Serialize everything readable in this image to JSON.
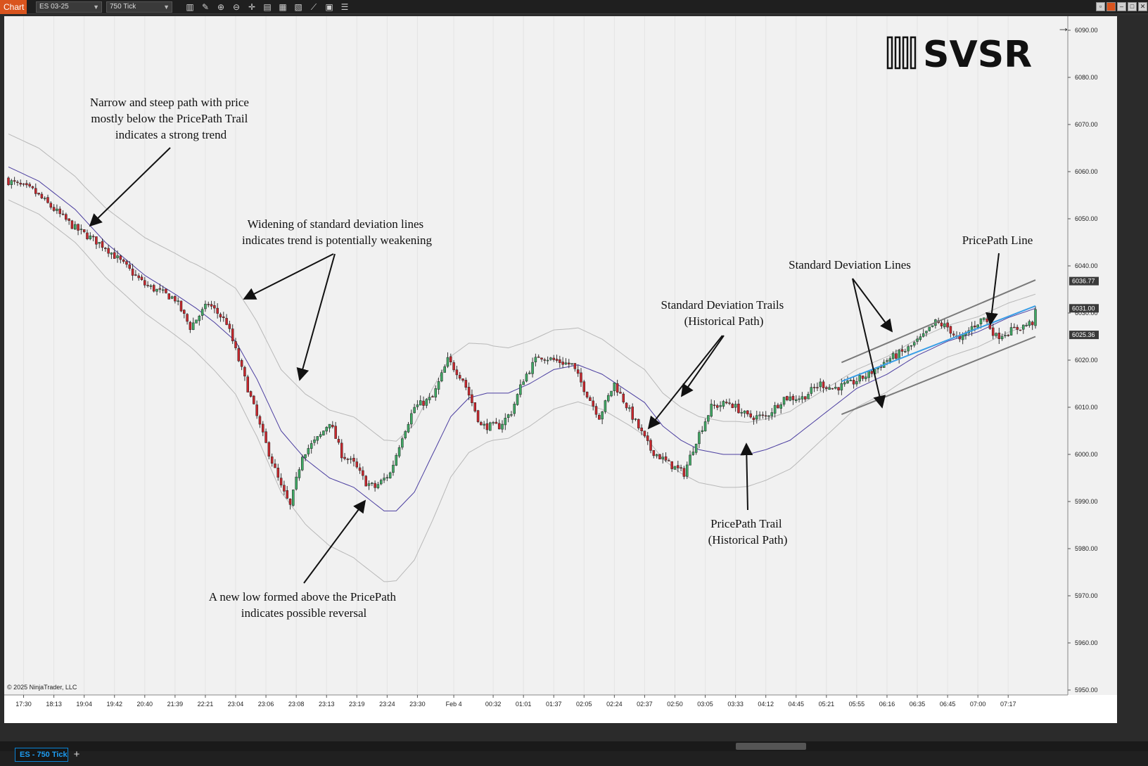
{
  "toolbar": {
    "chart_tab": "Chart",
    "instrument": "ES 03-25",
    "interval": "750 Tick"
  },
  "colors": {
    "background": "#f1f1f1",
    "bull_candle": "#3fa864",
    "bear_candle": "#c8272d",
    "pricepath_trail": "#4b3ea0",
    "std_dev_trail": "#b8b8b8",
    "pricepath_line": "#3a9ee6",
    "std_dev_line": "#7a7a7a",
    "annotation": "#111111"
  },
  "logo": "SVSR",
  "copyright": "© 2025 NinjaTrader, LLC",
  "annotations": [
    {
      "id": "strong-trend",
      "lines": [
        "Narrow and steep path with price",
        "mostly below the PricePath Trail",
        "indicates a strong trend"
      ]
    },
    {
      "id": "widening",
      "lines": [
        "Widening of standard deviation lines",
        "indicates trend is potentially weakening"
      ]
    },
    {
      "id": "new-low",
      "lines": [
        "A new low formed above the PricePath",
        "indicates possible reversal"
      ]
    },
    {
      "id": "std-trails",
      "lines": [
        "Standard Deviation Trails",
        "(Historical Path)"
      ]
    },
    {
      "id": "pricepath-trail",
      "lines": [
        "PricePath Trail",
        "(Historical Path)"
      ]
    },
    {
      "id": "std-lines",
      "lines": [
        "Standard Deviation Lines"
      ]
    },
    {
      "id": "pricepath-line",
      "lines": [
        "PricePath Line"
      ]
    }
  ],
  "chart_data": {
    "type": "candlestick",
    "ylim": [
      5950,
      6090
    ],
    "y_ticks": [
      6090,
      6080,
      6070,
      6060,
      6050,
      6040,
      6030,
      6020,
      6010,
      6000,
      5990,
      5980,
      5970,
      5960,
      5950
    ],
    "y_tick_labels": [
      "6090.00",
      "6080.00",
      "6070.00",
      "6060.00",
      "6050.00",
      "6040.00",
      "6030.00",
      "6020.00",
      "6010.00",
      "6000.00",
      "5990.00",
      "5980.00",
      "5970.00",
      "5960.00",
      "5950.00"
    ],
    "price_markers": [
      {
        "label": "6036.77",
        "value": 6036.77
      },
      {
        "label": "6031.00",
        "value": 6031.0
      },
      {
        "label": "6025.36",
        "value": 6025.36
      }
    ],
    "x_tick_labels": [
      "17:30",
      "18:13",
      "19:04",
      "19:42",
      "20:40",
      "21:39",
      "22:21",
      "23:04",
      "23:06",
      "23:08",
      "23:13",
      "23:19",
      "23:24",
      "23:30",
      "Feb 4",
      "00:32",
      "01:01",
      "01:37",
      "02:05",
      "02:24",
      "02:37",
      "02:50",
      "03:05",
      "03:33",
      "04:12",
      "04:45",
      "05:21",
      "05:55",
      "06:16",
      "06:35",
      "06:45",
      "07:00",
      "07:17"
    ],
    "x_ticks": [
      5,
      15,
      25,
      35,
      45,
      55,
      65,
      75,
      85,
      95,
      105,
      115,
      125,
      135,
      147,
      160,
      170,
      180,
      190,
      200,
      210,
      220,
      230,
      240,
      250,
      260,
      270,
      280,
      290,
      300,
      310,
      320,
      330
    ],
    "bar_count": 340,
    "close_keyframes": [
      [
        0,
        6058
      ],
      [
        8,
        6056
      ],
      [
        22,
        6048
      ],
      [
        32,
        6044
      ],
      [
        45,
        6036
      ],
      [
        55,
        6033
      ],
      [
        60,
        6027
      ],
      [
        66,
        6032
      ],
      [
        72,
        6028
      ],
      [
        78,
        6016
      ],
      [
        84,
        6004
      ],
      [
        90,
        5993
      ],
      [
        93,
        5989
      ],
      [
        97,
        6000
      ],
      [
        103,
        6004
      ],
      [
        106,
        6007
      ],
      [
        110,
        6000
      ],
      [
        114,
        5998
      ],
      [
        118,
        5994
      ],
      [
        121,
        5993
      ],
      [
        126,
        5996
      ],
      [
        130,
        6004
      ],
      [
        134,
        6010
      ],
      [
        140,
        6012
      ],
      [
        145,
        6020
      ],
      [
        150,
        6016
      ],
      [
        156,
        6006
      ],
      [
        162,
        6006
      ],
      [
        166,
        6009
      ],
      [
        170,
        6016
      ],
      [
        175,
        6021
      ],
      [
        180,
        6020
      ],
      [
        186,
        6019
      ],
      [
        190,
        6014
      ],
      [
        195,
        6008
      ],
      [
        200,
        6015
      ],
      [
        206,
        6008
      ],
      [
        212,
        6001
      ],
      [
        218,
        5998
      ],
      [
        223,
        5996
      ],
      [
        227,
        6003
      ],
      [
        232,
        6010
      ],
      [
        238,
        6011
      ],
      [
        244,
        6008
      ],
      [
        250,
        6008
      ],
      [
        256,
        6012
      ],
      [
        262,
        6012
      ],
      [
        268,
        6015
      ],
      [
        272,
        6014
      ],
      [
        278,
        6015
      ],
      [
        284,
        6017
      ],
      [
        290,
        6020
      ],
      [
        296,
        6022
      ],
      [
        302,
        6025
      ],
      [
        306,
        6028
      ],
      [
        310,
        6027
      ],
      [
        314,
        6024
      ],
      [
        318,
        6027
      ],
      [
        322,
        6029
      ],
      [
        326,
        6025
      ],
      [
        330,
        6026
      ],
      [
        334,
        6027
      ],
      [
        338,
        6028
      ],
      [
        339,
        6030
      ]
    ],
    "trail_keyframes": [
      [
        0,
        6061
      ],
      [
        10,
        6058
      ],
      [
        22,
        6052
      ],
      [
        32,
        6045
      ],
      [
        45,
        6038
      ],
      [
        55,
        6034
      ],
      [
        62,
        6031
      ],
      [
        68,
        6028
      ],
      [
        75,
        6024
      ],
      [
        82,
        6016
      ],
      [
        90,
        6005
      ],
      [
        98,
        5999
      ],
      [
        106,
        5995
      ],
      [
        114,
        5993
      ],
      [
        120,
        5990
      ],
      [
        124,
        5988
      ],
      [
        128,
        5988
      ],
      [
        134,
        5992
      ],
      [
        140,
        6000
      ],
      [
        146,
        6008
      ],
      [
        152,
        6012
      ],
      [
        158,
        6013
      ],
      [
        165,
        6013
      ],
      [
        172,
        6015
      ],
      [
        180,
        6018
      ],
      [
        188,
        6019
      ],
      [
        196,
        6017
      ],
      [
        203,
        6014
      ],
      [
        210,
        6011
      ],
      [
        216,
        6006
      ],
      [
        222,
        6003
      ],
      [
        228,
        6001
      ],
      [
        236,
        6000
      ],
      [
        244,
        6000
      ],
      [
        250,
        6001
      ],
      [
        258,
        6003
      ],
      [
        266,
        6007
      ],
      [
        272,
        6010
      ],
      [
        280,
        6014
      ],
      [
        290,
        6017
      ],
      [
        300,
        6021
      ],
      [
        310,
        6024
      ],
      [
        320,
        6026
      ],
      [
        330,
        6029
      ],
      [
        339,
        6031
      ]
    ],
    "trail_width_keyframes": [
      [
        0,
        7
      ],
      [
        25,
        7
      ],
      [
        45,
        8
      ],
      [
        60,
        9
      ],
      [
        80,
        12
      ],
      [
        100,
        14
      ],
      [
        115,
        15
      ],
      [
        125,
        15
      ],
      [
        140,
        14
      ],
      [
        160,
        10
      ],
      [
        185,
        8
      ],
      [
        205,
        7
      ],
      [
        222,
        7
      ],
      [
        240,
        7
      ],
      [
        260,
        6
      ],
      [
        280,
        4
      ],
      [
        300,
        3.5
      ],
      [
        320,
        3.2
      ],
      [
        339,
        3
      ]
    ],
    "pricepath_line": [
      [
        275,
        6015.5
      ],
      [
        339,
        6031.5
      ]
    ],
    "std_dev_lines": [
      [
        [
          275,
          6019.5
        ],
        [
          339,
          6037
        ]
      ],
      [
        [
          275,
          6008.5
        ],
        [
          339,
          6025
        ]
      ]
    ]
  }
}
